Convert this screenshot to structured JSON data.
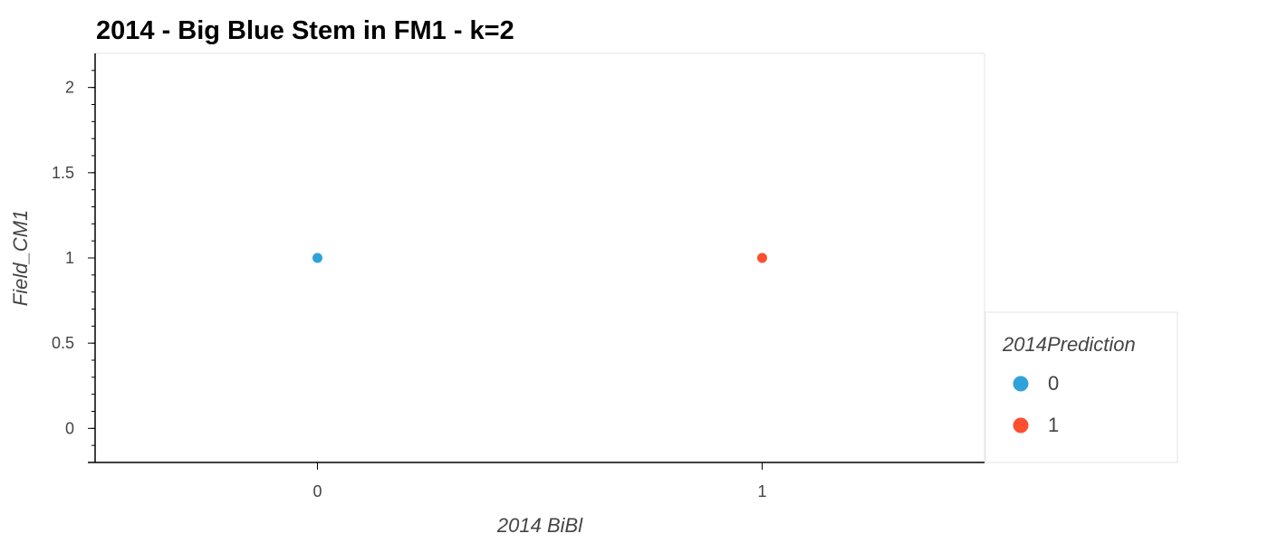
{
  "chart_data": {
    "type": "scatter",
    "title": "2014 - Big Blue Stem in FM1 - k=2",
    "xlabel": "2014 BiBl",
    "ylabel": "Field_CM1",
    "xlim": [
      -0.5,
      1.5
    ],
    "ylim": [
      -0.2,
      2.2
    ],
    "x_ticks": [
      "0",
      "1"
    ],
    "x_tick_values": [
      0,
      1
    ],
    "y_ticks": [
      "0",
      "0.5",
      "1",
      "1.5",
      "2"
    ],
    "y_tick_values": [
      0,
      0.5,
      1,
      1.5,
      2
    ],
    "grid": false,
    "legend": {
      "title": "2014Prediction",
      "placement": "right",
      "entries": [
        {
          "label": "0",
          "color": "#30a2da"
        },
        {
          "label": "1",
          "color": "#fc4f30"
        }
      ]
    },
    "series": [
      {
        "name": "0",
        "color": "#30a2da",
        "points": [
          {
            "x": 0,
            "y": 1
          }
        ]
      },
      {
        "name": "1",
        "color": "#fc4f30",
        "points": [
          {
            "x": 1,
            "y": 1
          }
        ]
      }
    ]
  }
}
